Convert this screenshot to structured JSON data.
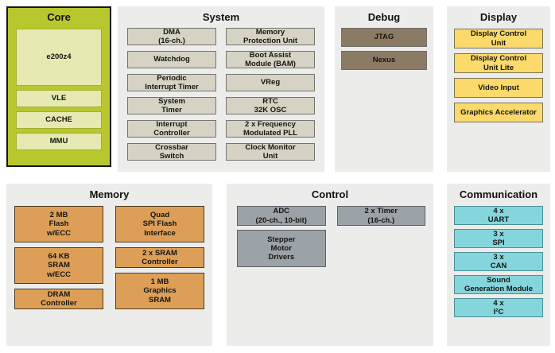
{
  "palette": {
    "page_bg": "#ffffff",
    "panel_bg": "#ececea",
    "core_bg": "#b9c72f",
    "core_block_bg": "#e6e9b2",
    "system_block_bg": "#d6d2c4",
    "debug_block_bg": "#8b7b64",
    "display_block_bg": "#fbd96b",
    "memory_block_bg": "#dd9f58",
    "control_block_bg": "#9ba2a8",
    "communication_block_bg": "#85d5dd",
    "text": "#1a1a1a"
  },
  "sections": {
    "core": {
      "title": "Core",
      "blocks": [
        "e200z4",
        "VLE",
        "CACHE",
        "MMU"
      ]
    },
    "system": {
      "title": "System",
      "left": [
        "DMA\n(16-ch.)",
        "Watchdog",
        "Periodic\nInterrupt Timer",
        "System\nTimer",
        "Interrupt\nController",
        "Crossbar\nSwitch"
      ],
      "right": [
        "Memory\nProtection Unit",
        "Boot Assist\nModule (BAM)",
        "VReg",
        "RTC\n32K OSC",
        "2 x Frequency\nModulated PLL",
        "Clock Monitor\nUnit"
      ]
    },
    "debug": {
      "title": "Debug",
      "blocks": [
        "JTAG",
        "Nexus"
      ]
    },
    "display": {
      "title": "Display",
      "blocks": [
        "Display Control\nUnit",
        "Display Control\nUnit Lite",
        "Video Input",
        "Graphics Accelerator"
      ]
    },
    "memory": {
      "title": "Memory",
      "left": [
        "2 MB\nFlash\nw/ECC",
        "64 KB\nSRAM\nw/ECC",
        "DRAM\nController"
      ],
      "right": [
        "Quad\nSPI Flash\nInterface",
        "2 x SRAM\nController",
        "1 MB\nGraphics\nSRAM"
      ]
    },
    "control": {
      "title": "Control",
      "left": [
        "ADC\n(20-ch., 10-bit)",
        "Stepper\nMotor\nDrivers"
      ],
      "right": [
        "2 x Timer\n(16-ch.)"
      ]
    },
    "communication": {
      "title": "Communication",
      "blocks": [
        "4 x\nUART",
        "3 x\nSPI",
        "3 x\nCAN",
        "Sound\nGeneration Module",
        "4 x\nI²C"
      ]
    }
  }
}
